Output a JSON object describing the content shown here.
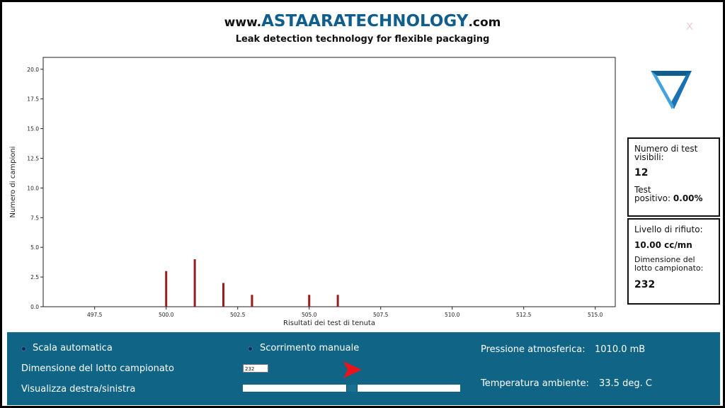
{
  "header": {
    "logo_prefix": "www.",
    "logo_brand": "ASTAARATECHNOLOGY",
    "logo_suffix": ".com",
    "tagline": "Leak detection technology for flexible packaging",
    "close_label": "X"
  },
  "info": {
    "tests_visible_label_1": "Numero di test",
    "tests_visible_label_2": "visibili:",
    "tests_visible_value": "12",
    "positive_label_1": "Test",
    "positive_label_2": "positivo:",
    "positive_value": "0.00%",
    "reject_label": "Livello di rifiuto:",
    "reject_value": "10.00 cc/mn",
    "lot_label_1": "Dimensione del",
    "lot_label_2": "lotto campionato:",
    "lot_value": "232"
  },
  "controls": {
    "auto_scale_label": "Scala automatica",
    "manual_scroll_label": "Scorrimento manuale",
    "lot_size_label": "Dimensione del lotto campionato",
    "lot_size_value": "232",
    "view_lr_label": "Visualizza destra/sinistra",
    "pressure_label": "Pressione atmosferica:",
    "pressure_value": "1010.0 mB",
    "temperature_label": "Temperatura ambiente:",
    "temperature_value": "33.5 deg. C",
    "slider_position": 0.5
  },
  "colors": {
    "panel": "#106485",
    "bar": "#9b1b1b",
    "brand": "#0f5e8e",
    "arrow": "#e8141b"
  },
  "chart_data": {
    "type": "bar",
    "xlabel": "Risultati dei test di tenuta",
    "ylabel": "Numero di campioni",
    "xlim": [
      495.7,
      515.7
    ],
    "ylim": [
      0,
      21
    ],
    "xticks": [
      "497.5",
      "500.0",
      "502.5",
      "505.0",
      "507.5",
      "510.0",
      "512.5",
      "515.0"
    ],
    "yticks": [
      "0.0",
      "2.5",
      "5.0",
      "7.5",
      "10.0",
      "12.5",
      "15.0",
      "17.5",
      "20.0"
    ],
    "x": [
      500.0,
      501.0,
      502.0,
      503.0,
      505.0,
      506.0
    ],
    "values": [
      3,
      4,
      2,
      1,
      1,
      1
    ],
    "grid": false
  }
}
